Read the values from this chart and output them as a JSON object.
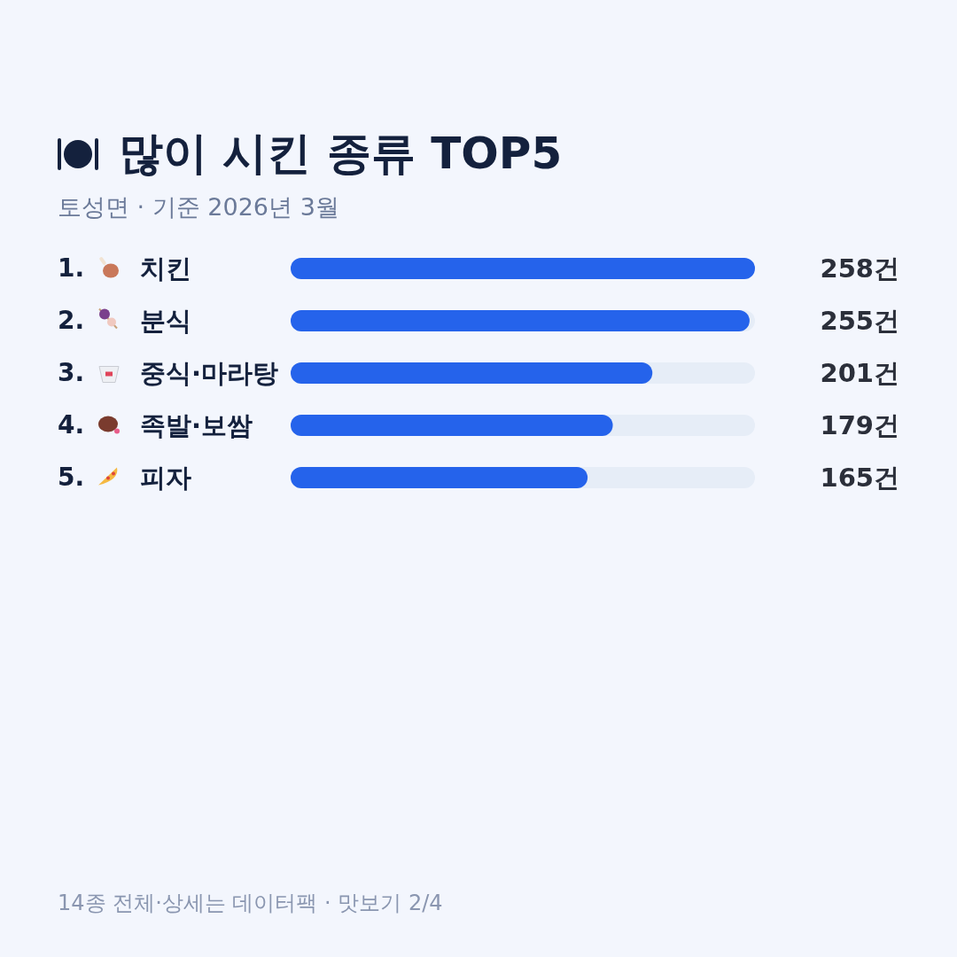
{
  "chart_data": {
    "type": "bar",
    "orientation": "horizontal",
    "title": "많이 시킨 종류 TOP5",
    "subtitle": "토성면 · 기준 2026년 3월",
    "categories": [
      "1. 치킨",
      "2. 분식",
      "3. 중식·마라탕",
      "4. 족발·보쌈",
      "5. 피자"
    ],
    "values": [
      258,
      255,
      201,
      179,
      165
    ],
    "value_labels": [
      "258건",
      "255건",
      "201건",
      "179건",
      "165건"
    ],
    "color": "#2563eb",
    "annotations": [
      "14종 전체·상세는 데이터팩 · 맛보기 2/4"
    ]
  }
}
